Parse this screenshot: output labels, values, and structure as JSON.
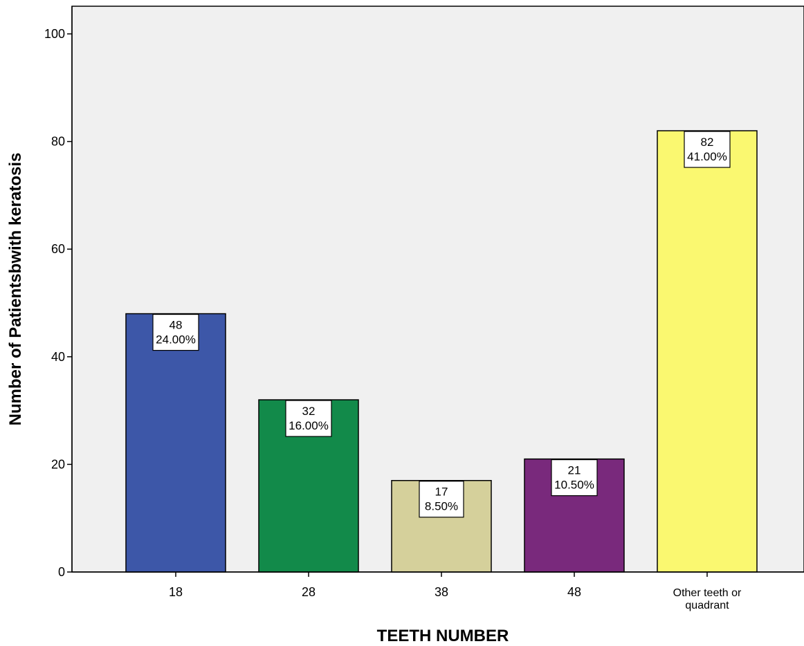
{
  "chart_data": {
    "type": "bar",
    "xlabel": "TEETH NUMBER",
    "ylabel": "Number of Patientsbwith keratosis",
    "ylim": [
      0,
      100
    ],
    "yticks": [
      0,
      20,
      40,
      60,
      80,
      100
    ],
    "grid": false,
    "categories": [
      {
        "label_lines": [
          "18"
        ],
        "value": 48,
        "percent": "24.00%",
        "color": "#3d57a8"
      },
      {
        "label_lines": [
          "28"
        ],
        "value": 32,
        "percent": "16.00%",
        "color": "#128a4a"
      },
      {
        "label_lines": [
          "38"
        ],
        "value": 17,
        "percent": "8.50%",
        "color": "#d5d09b"
      },
      {
        "label_lines": [
          "48"
        ],
        "value": 21,
        "percent": "10.50%",
        "color": "#79297c"
      },
      {
        "label_lines": [
          "Other teeth or",
          "quadrant"
        ],
        "value": 82,
        "percent": "41.00%",
        "color": "#faf870"
      }
    ],
    "plot_background": "#f0f0f0"
  }
}
